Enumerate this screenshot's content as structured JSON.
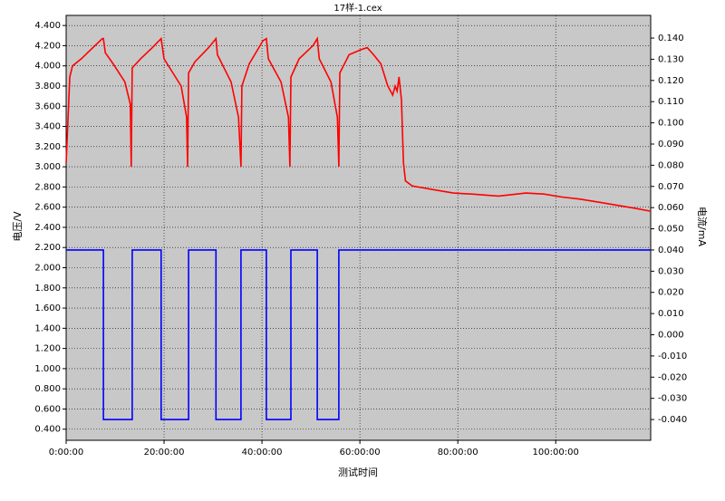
{
  "chart_data": {
    "type": "line",
    "title": "17样-1.cex",
    "x_label": "测试时间",
    "y_label": "电压/V",
    "y2_label": "电流/mA",
    "xlim": [
      0,
      119.4
    ],
    "ylim": [
      0.29,
      4.5
    ],
    "y2lim": [
      -0.0498,
      0.1507
    ],
    "grid": true,
    "xticks": [
      {
        "value": 0,
        "label": "0:00:00"
      },
      {
        "value": 20,
        "label": "20:00:00"
      },
      {
        "value": 40,
        "label": "40:00:00"
      },
      {
        "value": 60,
        "label": "60:00:00"
      },
      {
        "value": 80,
        "label": "80:00:00"
      },
      {
        "value": 100,
        "label": "100:00:00"
      }
    ],
    "yticks": [
      {
        "value": 0.4,
        "label": "0.400"
      },
      {
        "value": 0.6,
        "label": "0.600"
      },
      {
        "value": 0.8,
        "label": "0.800"
      },
      {
        "value": 1.0,
        "label": "1.000"
      },
      {
        "value": 1.2,
        "label": "1.200"
      },
      {
        "value": 1.4,
        "label": "1.400"
      },
      {
        "value": 1.6,
        "label": "1.600"
      },
      {
        "value": 1.8,
        "label": "1.800"
      },
      {
        "value": 2.0,
        "label": "2.000"
      },
      {
        "value": 2.2,
        "label": "2.200"
      },
      {
        "value": 2.4,
        "label": "2.400"
      },
      {
        "value": 2.6,
        "label": "2.600"
      },
      {
        "value": 2.8,
        "label": "2.800"
      },
      {
        "value": 3.0,
        "label": "3.000"
      },
      {
        "value": 3.2,
        "label": "3.200"
      },
      {
        "value": 3.4,
        "label": "3.400"
      },
      {
        "value": 3.6,
        "label": "3.600"
      },
      {
        "value": 3.8,
        "label": "3.800"
      },
      {
        "value": 4.0,
        "label": "4.000"
      },
      {
        "value": 4.2,
        "label": "4.200"
      },
      {
        "value": 4.4,
        "label": "4.400"
      }
    ],
    "y2ticks": [
      {
        "value": -0.04,
        "label": "-0.040"
      },
      {
        "value": -0.03,
        "label": "-0.030"
      },
      {
        "value": -0.02,
        "label": "-0.020"
      },
      {
        "value": -0.01,
        "label": "-0.010"
      },
      {
        "value": 0,
        "label": "0.000"
      },
      {
        "value": 0.01,
        "label": "0.010"
      },
      {
        "value": 0.02,
        "label": "0.020"
      },
      {
        "value": 0.03,
        "label": "0.030"
      },
      {
        "value": 0.04,
        "label": "0.040"
      },
      {
        "value": 0.05,
        "label": "0.050"
      },
      {
        "value": 0.06,
        "label": "0.060"
      },
      {
        "value": 0.07,
        "label": "0.070"
      },
      {
        "value": 0.08,
        "label": "0.080"
      },
      {
        "value": 0.09,
        "label": "0.090"
      },
      {
        "value": 0.1,
        "label": "0.100"
      },
      {
        "value": 0.11,
        "label": "0.110"
      },
      {
        "value": 0.12,
        "label": "0.120"
      },
      {
        "value": 0.13,
        "label": "0.130"
      },
      {
        "value": 0.14,
        "label": "0.140"
      }
    ],
    "series": [
      {
        "color": "#ff0000",
        "axis": "y",
        "x": [
          0,
          0.74,
          1.3,
          3.1,
          5.0,
          7.4,
          7.6,
          8.0,
          9.6,
          12.0,
          13.1,
          13.3,
          13.5,
          15.2,
          17.6,
          19.4,
          20.0,
          23.5,
          24.6,
          24.8,
          25.0,
          26.3,
          29.1,
          30.6,
          30.9,
          33.7,
          35.2,
          35.7,
          35.9,
          37.4,
          40.2,
          40.9,
          41.3,
          43.9,
          45.4,
          45.7,
          45.9,
          47.6,
          50.4,
          51.3,
          51.7,
          54.1,
          55.4,
          55.7,
          55.9,
          57.8,
          60.2,
          61.5,
          62.8,
          64.3,
          65.7,
          66.7,
          67.2,
          67.6,
          68.0,
          68.5,
          68.9,
          69.3,
          70.7,
          75.4,
          79.1,
          82.8,
          88.3,
          90.2,
          93.9,
          97.6,
          101.3,
          105.0,
          108.7,
          112.4,
          116.1,
          119.4
        ],
        "values": [
          3.04,
          3.89,
          4.0,
          4.07,
          4.16,
          4.27,
          4.27,
          4.13,
          4.02,
          3.84,
          3.62,
          3.0,
          3.98,
          4.07,
          4.18,
          4.27,
          4.07,
          3.8,
          3.49,
          3.0,
          3.93,
          4.04,
          4.18,
          4.27,
          4.11,
          3.84,
          3.49,
          3.0,
          3.8,
          4.02,
          4.25,
          4.27,
          4.07,
          3.84,
          3.49,
          3.0,
          3.89,
          4.07,
          4.2,
          4.27,
          4.07,
          3.84,
          3.49,
          3.0,
          3.93,
          4.11,
          4.16,
          4.18,
          4.11,
          4.02,
          3.8,
          3.71,
          3.8,
          3.75,
          3.89,
          3.66,
          3.04,
          2.86,
          2.81,
          2.77,
          2.74,
          2.73,
          2.71,
          2.72,
          2.74,
          2.73,
          2.7,
          2.68,
          2.65,
          2.62,
          2.59,
          2.56
        ]
      },
      {
        "color": "#0000ff",
        "axis": "y2",
        "x": [
          0,
          7.6,
          7.6,
          13.5,
          13.5,
          19.4,
          19.4,
          25.0,
          25.0,
          30.6,
          30.6,
          35.7,
          35.7,
          40.9,
          40.9,
          45.9,
          45.9,
          51.3,
          51.3,
          55.7,
          55.7,
          119.4
        ],
        "values": [
          0.04,
          0.04,
          -0.04,
          -0.04,
          0.04,
          0.04,
          -0.04,
          -0.04,
          0.04,
          0.04,
          -0.04,
          -0.04,
          0.04,
          0.04,
          -0.04,
          -0.04,
          0.04,
          0.04,
          -0.04,
          -0.04,
          0.04,
          0.04
        ]
      }
    ]
  }
}
